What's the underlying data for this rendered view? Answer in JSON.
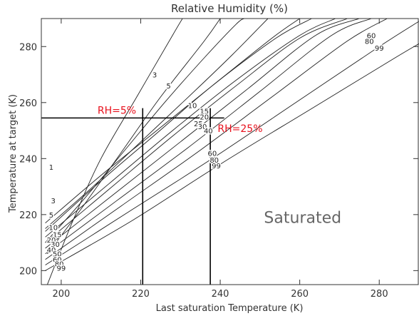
{
  "chart_data": {
    "type": "line",
    "title": "Relative Humidity (%)",
    "xlabel": "Last saturation Temperature (K)",
    "ylabel": "Temperature at target (K)",
    "xlim": [
      195,
      290
    ],
    "ylim": [
      195,
      290
    ],
    "xticks": [
      200,
      220,
      240,
      260,
      280
    ],
    "yticks": [
      200,
      220,
      240,
      260,
      280
    ],
    "grid": false,
    "contours": [
      {
        "label": "1",
        "points": [
          [
            196.5,
            195
          ],
          [
            203,
            218
          ],
          [
            210,
            240
          ],
          [
            219,
            262
          ],
          [
            228,
            284
          ],
          [
            230.5,
            290
          ]
        ]
      },
      {
        "label": "3",
        "points": [
          [
            196.5,
            206
          ],
          [
            205,
            222
          ],
          [
            215,
            242
          ],
          [
            225,
            262
          ],
          [
            236,
            282
          ],
          [
            240,
            290
          ]
        ]
      },
      {
        "label": "5",
        "points": [
          [
            196,
            210
          ],
          [
            206,
            226
          ],
          [
            216,
            243
          ],
          [
            226,
            260
          ],
          [
            236,
            276
          ],
          [
            244,
            288
          ],
          [
            246,
            290
          ]
        ]
      },
      {
        "label": "10",
        "points": [
          [
            196,
            215
          ],
          [
            208,
            230
          ],
          [
            220,
            246
          ],
          [
            232,
            262
          ],
          [
            243,
            277
          ],
          [
            252,
            290
          ]
        ]
      },
      {
        "label": "15",
        "points": [
          [
            196,
            217
          ],
          [
            210,
            234
          ],
          [
            224,
            250
          ],
          [
            238,
            266
          ],
          [
            253,
            283
          ],
          [
            260,
            290
          ]
        ]
      },
      {
        "label": "20",
        "points": [
          [
            196,
            214
          ],
          [
            210,
            232
          ],
          [
            224,
            249
          ],
          [
            238,
            266
          ],
          [
            254,
            283
          ],
          [
            263,
            290
          ]
        ]
      },
      {
        "label": "25",
        "points": [
          [
            196,
            212
          ],
          [
            212,
            231
          ],
          [
            228,
            250
          ],
          [
            244,
            268
          ],
          [
            260,
            284
          ],
          [
            269,
            290
          ]
        ]
      },
      {
        "label": "30",
        "points": [
          [
            196,
            210
          ],
          [
            212,
            229
          ],
          [
            228,
            248
          ],
          [
            244,
            266
          ],
          [
            260,
            283
          ],
          [
            272,
            290
          ]
        ]
      },
      {
        "label": "40",
        "points": [
          [
            196,
            208
          ],
          [
            213,
            227
          ],
          [
            230,
            246
          ],
          [
            247,
            265
          ],
          [
            264,
            284
          ],
          [
            275,
            290
          ]
        ]
      },
      {
        "label": "50",
        "points": [
          [
            196,
            206
          ],
          [
            214,
            225
          ],
          [
            232,
            244
          ],
          [
            250,
            264
          ],
          [
            268,
            284
          ],
          [
            278,
            290
          ]
        ]
      },
      {
        "label": "60",
        "points": [
          [
            196,
            204
          ],
          [
            215,
            223
          ],
          [
            234,
            242
          ],
          [
            253,
            262
          ],
          [
            272,
            282
          ],
          [
            282,
            290
          ]
        ]
      },
      {
        "label": "80",
        "points": [
          [
            196,
            202
          ],
          [
            217,
            221
          ],
          [
            238,
            240
          ],
          [
            259,
            260
          ],
          [
            280,
            280
          ],
          [
            290,
            289
          ]
        ]
      },
      {
        "label": "99",
        "points": [
          [
            196,
            200
          ],
          [
            218,
            218
          ],
          [
            240,
            238
          ],
          [
            262,
            257
          ],
          [
            284,
            276
          ],
          [
            290,
            281
          ]
        ]
      }
    ],
    "contour_labels": [
      {
        "text": "1",
        "x": 197.5,
        "y": 236
      },
      {
        "text": "3",
        "x": 198,
        "y": 224
      },
      {
        "text": "5",
        "x": 197.5,
        "y": 219
      },
      {
        "text": "10",
        "x": 198,
        "y": 214.5
      },
      {
        "text": "15",
        "x": 199,
        "y": 212
      },
      {
        "text": "20",
        "x": 197.5,
        "y": 210
      },
      {
        "text": "30",
        "x": 198.5,
        "y": 208.5
      },
      {
        "text": "40",
        "x": 197.5,
        "y": 206.5
      },
      {
        "text": "50",
        "x": 199,
        "y": 205
      },
      {
        "text": "60",
        "x": 199,
        "y": 203
      },
      {
        "text": "80",
        "x": 199.5,
        "y": 201.5
      },
      {
        "text": "99",
        "x": 200,
        "y": 200
      },
      {
        "text": "3",
        "x": 223.5,
        "y": 269
      },
      {
        "text": "5",
        "x": 227,
        "y": 265
      },
      {
        "text": "10",
        "x": 233,
        "y": 258
      },
      {
        "text": "15",
        "x": 236,
        "y": 256
      },
      {
        "text": "20",
        "x": 236,
        "y": 254
      },
      {
        "text": "25",
        "x": 234.5,
        "y": 251.5
      },
      {
        "text": "30",
        "x": 235.5,
        "y": 250.5
      },
      {
        "text": "40",
        "x": 237,
        "y": 249
      },
      {
        "text": "60",
        "x": 238,
        "y": 241
      },
      {
        "text": "80",
        "x": 238.5,
        "y": 238.5
      },
      {
        "text": "99",
        "x": 239,
        "y": 236.5
      },
      {
        "text": "60",
        "x": 278,
        "y": 283
      },
      {
        "text": "80",
        "x": 277.5,
        "y": 281
      },
      {
        "text": "99",
        "x": 280,
        "y": 278.5
      }
    ],
    "reference_lines": [
      {
        "orientation": "horizontal",
        "y": 254.5,
        "x_from": 195,
        "x_to": 241
      },
      {
        "orientation": "vertical",
        "x": 220.5,
        "y_from": 195,
        "y_to": 258
      },
      {
        "orientation": "vertical",
        "x": 237.5,
        "y_from": 195,
        "y_to": 258
      }
    ],
    "annotations": [
      {
        "text": "RH=5%",
        "x": 214,
        "y": 256,
        "color": "#e8101c"
      },
      {
        "text": "RH=25%",
        "x": 245,
        "y": 249.5,
        "color": "#e8101c"
      },
      {
        "text": "Saturated",
        "x": 251,
        "y": 217,
        "color": "#666666"
      }
    ]
  }
}
